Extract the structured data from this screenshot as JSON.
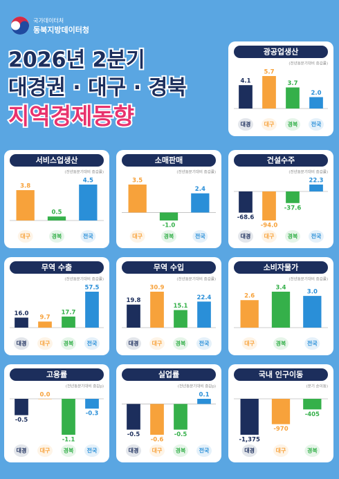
{
  "header": {
    "agency": "국가데이터처",
    "office": "동북지방데이터청",
    "title_lines": [
      "2026년 2분기",
      "대경권 · 대구 · 경북",
      "지역경제동향"
    ]
  },
  "chart_data": [
    {
      "type": "bar",
      "title": "광공업생산",
      "subtitle": "(전년동분기대비 증감률)",
      "categories": [
        "대경",
        "대구",
        "경북",
        "전국"
      ],
      "values": [
        4.1,
        5.7,
        3.7,
        2.0
      ],
      "value_labels": [
        "4.1",
        "5.7",
        "3.7",
        "2.0"
      ],
      "colors": [
        "#1c2e5c",
        "#f7a23b",
        "#35b04a",
        "#2a8fd8"
      ]
    },
    {
      "type": "bar",
      "title": "서비스업생산",
      "subtitle": "(전년동분기대비 증감률)",
      "categories": [
        "대구",
        "경북",
        "전국"
      ],
      "values": [
        3.8,
        0.5,
        4.5
      ],
      "value_labels": [
        "3.8",
        "0.5",
        "4.5"
      ],
      "colors": [
        "#f7a23b",
        "#35b04a",
        "#2a8fd8"
      ]
    },
    {
      "type": "bar",
      "title": "소매판매",
      "subtitle": "(전년동분기대비 증감률)",
      "categories": [
        "대구",
        "경북",
        "전국"
      ],
      "values": [
        3.5,
        -1.0,
        2.4
      ],
      "value_labels": [
        "3.5",
        "-1.0",
        "2.4"
      ],
      "colors": [
        "#f7a23b",
        "#35b04a",
        "#2a8fd8"
      ]
    },
    {
      "type": "bar",
      "title": "건설수주",
      "subtitle": "(전년동분기대비 증감률)",
      "categories": [
        "대경",
        "대구",
        "경북",
        "전국"
      ],
      "values": [
        -68.6,
        -94.0,
        -37.6,
        22.3
      ],
      "value_labels": [
        "-68.6",
        "-94.0",
        "-37.6",
        "22.3"
      ],
      "colors": [
        "#1c2e5c",
        "#f7a23b",
        "#35b04a",
        "#2a8fd8"
      ]
    },
    {
      "type": "bar",
      "title": "무역 수출",
      "subtitle": "(전년동분기대비 증감률)",
      "categories": [
        "대경",
        "대구",
        "경북",
        "전국"
      ],
      "values": [
        16.0,
        9.7,
        17.7,
        57.5
      ],
      "value_labels": [
        "16.0",
        "9.7",
        "17.7",
        "57.5"
      ],
      "colors": [
        "#1c2e5c",
        "#f7a23b",
        "#35b04a",
        "#2a8fd8"
      ]
    },
    {
      "type": "bar",
      "title": "무역 수입",
      "subtitle": "(전년동분기대비 증감률)",
      "categories": [
        "대경",
        "대구",
        "경북",
        "전국"
      ],
      "values": [
        19.8,
        30.9,
        15.1,
        22.4
      ],
      "value_labels": [
        "19.8",
        "30.9",
        "15.1",
        "22.4"
      ],
      "colors": [
        "#1c2e5c",
        "#f7a23b",
        "#35b04a",
        "#2a8fd8"
      ]
    },
    {
      "type": "bar",
      "title": "소비자물가",
      "subtitle": "(전년동분기대비 증감률)",
      "categories": [
        "대구",
        "경북",
        "전국"
      ],
      "values": [
        2.6,
        3.4,
        3.0
      ],
      "value_labels": [
        "2.6",
        "3.4",
        "3.0"
      ],
      "colors": [
        "#f7a23b",
        "#35b04a",
        "#2a8fd8"
      ]
    },
    {
      "type": "bar",
      "title": "고용률",
      "subtitle": "(전년동분기대비 증감p)",
      "categories": [
        "대경",
        "대구",
        "경북",
        "전국"
      ],
      "values": [
        -0.5,
        0.0,
        -1.1,
        -0.3
      ],
      "value_labels": [
        "-0.5",
        "0.0",
        "-1.1",
        "-0.3"
      ],
      "colors": [
        "#1c2e5c",
        "#f7a23b",
        "#35b04a",
        "#2a8fd8"
      ]
    },
    {
      "type": "bar",
      "title": "실업률",
      "subtitle": "(전년동분기대비 증감p)",
      "categories": [
        "대경",
        "대구",
        "경북",
        "전국"
      ],
      "values": [
        -0.5,
        -0.6,
        -0.5,
        0.1
      ],
      "value_labels": [
        "-0.5",
        "-0.6",
        "-0.5",
        "0.1"
      ],
      "colors": [
        "#1c2e5c",
        "#f7a23b",
        "#35b04a",
        "#2a8fd8"
      ]
    },
    {
      "type": "bar",
      "title": "국내 인구이동",
      "subtitle": "(분기 순이동)",
      "categories": [
        "대경",
        "대구",
        "경북"
      ],
      "values": [
        -1375,
        -970,
        -405
      ],
      "value_labels": [
        "-1,375",
        "-970",
        "-405"
      ],
      "colors": [
        "#1c2e5c",
        "#f7a23b",
        "#35b04a"
      ]
    }
  ]
}
